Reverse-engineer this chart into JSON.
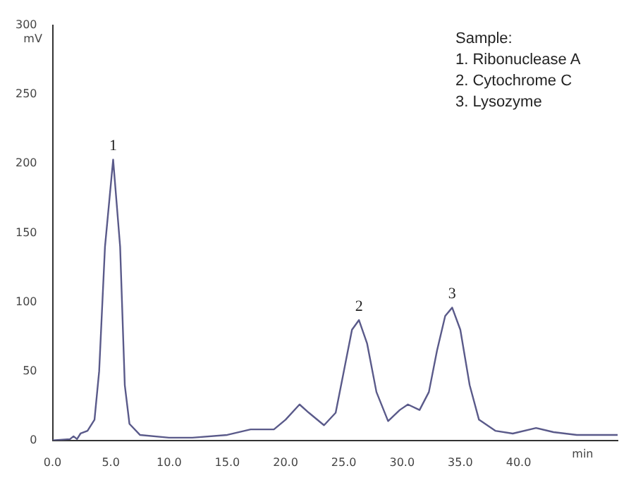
{
  "chart_data": {
    "type": "line",
    "xlabel": "min",
    "ylabel": "mV",
    "x": [
      0,
      1.5,
      1.8,
      2.1,
      2.4,
      3,
      3.6,
      4,
      4.5,
      5.2,
      5.8,
      6.2,
      6.6,
      7.5,
      10,
      12,
      15,
      17,
      18,
      19,
      20,
      21.2,
      22,
      23.3,
      24.3,
      25,
      25.7,
      26.3,
      27,
      27.8,
      28.8,
      29.8,
      30.5,
      31.5,
      32.3,
      33,
      33.7,
      34.3,
      35,
      35.8,
      36.6,
      38,
      39.5,
      41.5,
      43,
      45,
      48.5
    ],
    "series": [
      {
        "color": "#5a5a8a",
        "values": [
          0,
          1,
          3,
          1,
          5,
          7,
          15,
          50,
          140,
          203,
          140,
          40,
          12,
          4,
          2,
          2,
          4,
          8,
          8,
          8,
          15,
          26,
          20,
          11,
          20,
          50,
          80,
          87,
          70,
          35,
          14,
          22,
          26,
          22,
          35,
          65,
          90,
          96,
          80,
          40,
          15,
          7,
          5,
          9,
          6,
          4,
          4
        ]
      }
    ],
    "xlim": [
      0,
      48.5
    ],
    "ylim": [
      0,
      300
    ],
    "xticks": [
      {
        "value": 0,
        "label": "0.0"
      },
      {
        "value": 5,
        "label": "5.0"
      },
      {
        "value": 10,
        "label": "10.0"
      },
      {
        "value": 15,
        "label": "15.0"
      },
      {
        "value": 20,
        "label": "20.0"
      },
      {
        "value": 25,
        "label": "25.0"
      },
      {
        "value": 30,
        "label": "30.0"
      },
      {
        "value": 35,
        "label": "35.0"
      },
      {
        "value": 40,
        "label": "40.0"
      }
    ],
    "yticks": [
      0,
      50,
      100,
      150,
      200,
      250,
      300
    ],
    "annotations": [
      {
        "text": "1",
        "x": 5.2,
        "y": 203
      },
      {
        "text": "2",
        "x": 26.3,
        "y": 87
      },
      {
        "text": "3",
        "x": 34.3,
        "y": 96
      },
      "Sample:",
      "1. Ribonuclease A",
      "2. Cytochrome C",
      "3. Lysozyme"
    ],
    "grid": false,
    "legend": false,
    "marker": "none",
    "line_style": "solid"
  }
}
